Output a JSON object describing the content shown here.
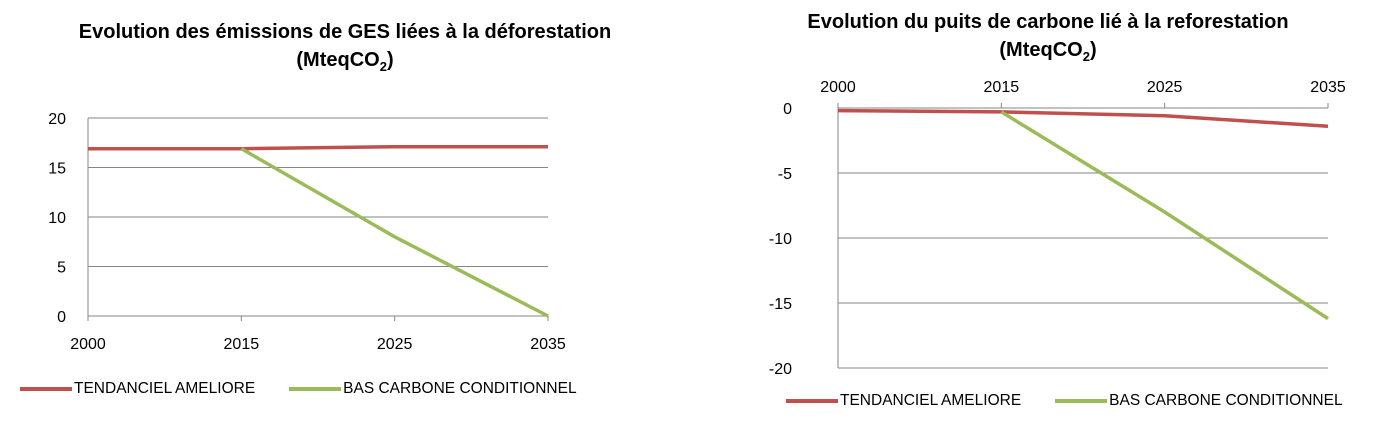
{
  "colors": {
    "tendanciel": "#c0504d",
    "bas_carbone": "#9bbb59",
    "grid": "#868686",
    "axis": "#868686"
  },
  "legend": {
    "series_a": "TENDANCIEL AMELIORE",
    "series_b": "BAS CARBONE CONDITIONNEL"
  },
  "chart_data": [
    {
      "type": "line",
      "title": "Evolution des émissions de GES liées à la déforestation",
      "title_unit": "(MteqCO",
      "title_unit_sub": "2",
      "title_unit_end": ")",
      "x": [
        "2000",
        "2015",
        "2025",
        "2035"
      ],
      "ylim": [
        0,
        20
      ],
      "yticks": [
        "0",
        "5",
        "10",
        "15",
        "20"
      ],
      "grid": true,
      "legend_position": "bottom",
      "series": [
        {
          "name": "TENDANCIEL AMELIORE",
          "values": [
            16.9,
            16.9,
            17.1,
            17.1
          ]
        },
        {
          "name": "BAS CARBONE CONDITIONNEL",
          "values": [
            null,
            16.9,
            8.0,
            0.0
          ]
        }
      ]
    },
    {
      "type": "line",
      "title": "Evolution du puits de carbone lié à la reforestation",
      "title_unit": "(MteqCO",
      "title_unit_sub": "2",
      "title_unit_end": ")",
      "x": [
        "2000",
        "2015",
        "2025",
        "2035"
      ],
      "ylim": [
        -20,
        0
      ],
      "yticks": [
        "0",
        "-5",
        "-10",
        "-15",
        "-20"
      ],
      "x_axis_position": "top",
      "grid": true,
      "legend_position": "bottom",
      "series": [
        {
          "name": "TENDANCIEL AMELIORE",
          "values": [
            -0.2,
            -0.3,
            -0.6,
            -1.4
          ]
        },
        {
          "name": "BAS CARBONE CONDITIONNEL",
          "values": [
            null,
            -0.3,
            -8.0,
            -16.2
          ]
        }
      ]
    }
  ]
}
